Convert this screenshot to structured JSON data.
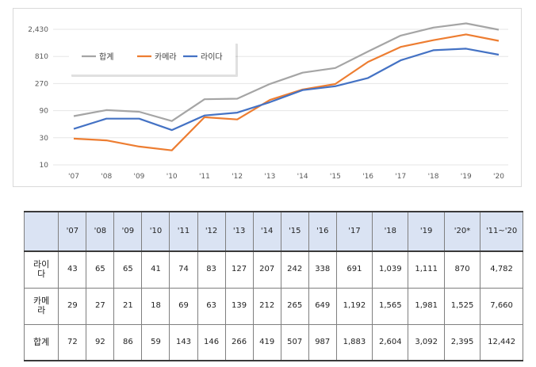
{
  "chart_data": {
    "type": "line",
    "y_scale": "log3",
    "y_ticks": [
      "2,430",
      "810",
      "270",
      "90",
      "30",
      "10"
    ],
    "y_tick_values": [
      2430,
      810,
      270,
      90,
      30,
      10
    ],
    "ylim": [
      10,
      2430
    ],
    "categories": [
      "'07",
      "'08",
      "'09",
      "'10",
      "'11",
      "'12",
      "'13",
      "'14",
      "'15",
      "'16",
      "'17",
      "'18",
      "'19",
      "'20"
    ],
    "legend_position": "top-left",
    "series": [
      {
        "name": "합계",
        "color": "#a5a5a5",
        "values": [
          72,
          92,
          86,
          59,
          143,
          146,
          266,
          419,
          507,
          987,
          1883,
          2604,
          3092,
          2395
        ]
      },
      {
        "name": "카메라",
        "color": "#ed7d31",
        "values": [
          29,
          27,
          21,
          18,
          69,
          63,
          139,
          212,
          265,
          649,
          1192,
          1565,
          1981,
          1525
        ]
      },
      {
        "name": "라이다",
        "color": "#4472c4",
        "values": [
          43,
          65,
          65,
          41,
          74,
          83,
          127,
          207,
          242,
          338,
          691,
          1039,
          1111,
          870
        ]
      }
    ]
  },
  "table": {
    "headers": [
      "",
      "'07",
      "'08",
      "'09",
      "'10",
      "'11",
      "'12",
      "'13",
      "'14",
      "'15",
      "'16",
      "'17",
      "'18",
      "'19",
      "'20*",
      "'11~'20"
    ],
    "rows": [
      {
        "label": "라이다",
        "cells": [
          "43",
          "65",
          "65",
          "41",
          "74",
          "83",
          "127",
          "207",
          "242",
          "338",
          "691",
          "1,039",
          "1,111",
          "870",
          "4,782"
        ]
      },
      {
        "label": "카메라",
        "cells": [
          "29",
          "27",
          "21",
          "18",
          "69",
          "63",
          "139",
          "212",
          "265",
          "649",
          "1,192",
          "1,565",
          "1,981",
          "1,525",
          "7,660"
        ]
      },
      {
        "label": "합계",
        "cells": [
          "72",
          "92",
          "86",
          "59",
          "143",
          "146",
          "266",
          "419",
          "507",
          "987",
          "1,883",
          "2,604",
          "3,092",
          "2,395",
          "12,442"
        ]
      }
    ]
  }
}
